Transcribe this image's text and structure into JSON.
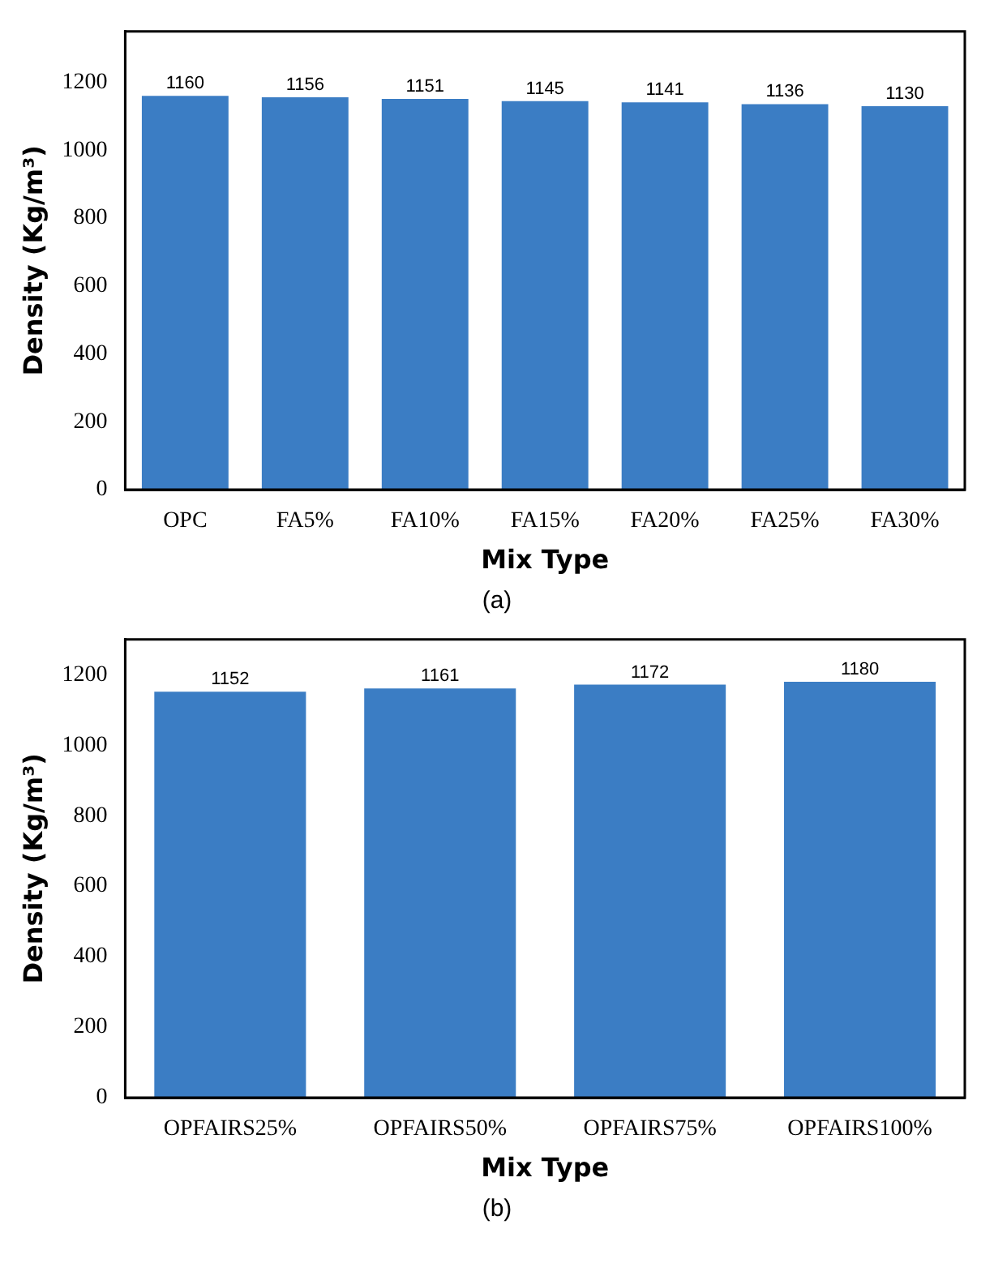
{
  "chart_data": [
    {
      "type": "bar",
      "xlabel": "Mix Type",
      "ylabel": "Density (Kg/m³)",
      "categories": [
        "OPC",
        "FA5%",
        "FA10%",
        "FA15%",
        "FA20%",
        "FA25%",
        "FA30%"
      ],
      "values": [
        1160,
        1156,
        1151,
        1145,
        1141,
        1136,
        1130
      ],
      "color": "#3b7dc4",
      "ylim": [
        0,
        1350
      ],
      "yticks": [
        0,
        200,
        400,
        600,
        800,
        1000,
        1200
      ],
      "data_labels": true,
      "grid": false,
      "legend": false,
      "annotations": [
        "(a)"
      ]
    },
    {
      "type": "bar",
      "xlabel": "Mix Type",
      "ylabel": "Density (Kg/m³)",
      "categories": [
        "OPFAIRS25%",
        "OPFAIRS50%",
        "OPFAIRS75%",
        "OPFAIRS100%"
      ],
      "values": [
        1152,
        1161,
        1172,
        1180
      ],
      "color": "#3b7dc4",
      "ylim": [
        0,
        1300
      ],
      "yticks": [
        0,
        200,
        400,
        600,
        800,
        1000,
        1200
      ],
      "data_labels": true,
      "grid": false,
      "legend": false,
      "annotations": [
        "(b)"
      ]
    }
  ]
}
